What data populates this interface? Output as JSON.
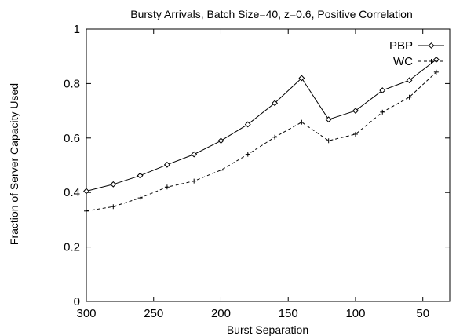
{
  "chart_data": {
    "type": "line",
    "title": "Bursty Arrivals, Batch Size=40, z=0.6, Positive Correlation",
    "xlabel": "Burst Separation",
    "ylabel": "Fraction of Server Capacity Used",
    "xlim": [
      300,
      30
    ],
    "ylim": [
      0,
      1
    ],
    "x_reversed": true,
    "xticks": [
      300,
      250,
      200,
      150,
      100,
      50
    ],
    "xtick_labels": [
      "300",
      "250",
      "200",
      "150",
      "100",
      "50"
    ],
    "yticks": [
      0,
      0.2,
      0.4,
      0.6,
      0.8,
      1
    ],
    "ytick_labels": [
      "0",
      "0.2",
      "0.4",
      "0.6",
      "0.8",
      "1"
    ],
    "grid": false,
    "legend_position": "top-right",
    "x": [
      300,
      280,
      260,
      240,
      220,
      200,
      180,
      160,
      140,
      120,
      100,
      80,
      60,
      40
    ],
    "series": [
      {
        "name": "PBP",
        "marker": "diamond",
        "line_style": "solid",
        "values": [
          0.405,
          0.43,
          0.462,
          0.502,
          0.54,
          0.59,
          0.65,
          0.728,
          0.82,
          0.668,
          0.7,
          0.775,
          0.812,
          0.888
        ]
      },
      {
        "name": "WC",
        "marker": "plus",
        "line_style": "dashed",
        "values": [
          0.332,
          0.348,
          0.38,
          0.42,
          0.442,
          0.482,
          0.54,
          0.603,
          0.658,
          0.59,
          0.614,
          0.695,
          0.75,
          0.842
        ]
      }
    ]
  }
}
